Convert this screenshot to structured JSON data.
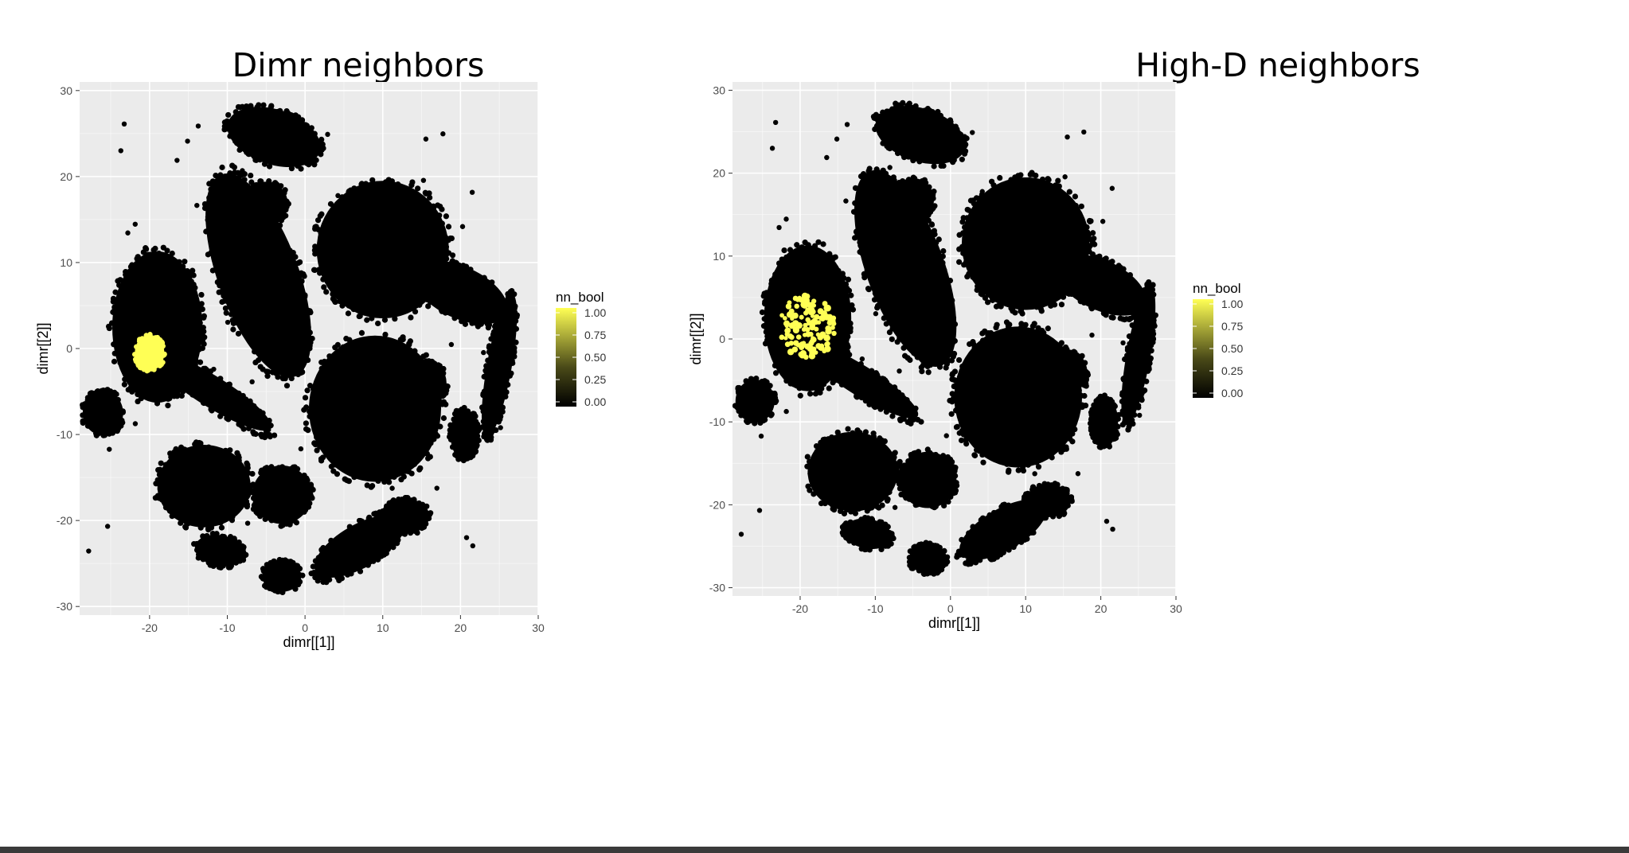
{
  "chart_data": [
    {
      "type": "scatter",
      "title": "Dimr neighbors",
      "xlabel": "dimr[[1]]",
      "ylabel": "dimr[[2]]",
      "xlim": [
        -29,
        30
      ],
      "ylim": [
        -31,
        31
      ],
      "xticks": [
        -20,
        -10,
        0,
        10,
        20,
        30
      ],
      "yticks": [
        -30,
        -20,
        -10,
        0,
        10,
        20,
        30
      ],
      "grid": true,
      "legend": {
        "title": "nn_bool",
        "placement": "right",
        "ticks": [
          "1.00",
          "0.75",
          "0.50",
          "0.25",
          "0.00"
        ],
        "color_low": "#000000",
        "color_high": "#ffff55"
      },
      "highlight": {
        "mode": "compact",
        "center": [
          -20,
          -0.5
        ],
        "radius": 1.9,
        "value": 1.0
      },
      "background_value": 0.0
    },
    {
      "type": "scatter",
      "title": "High-D neighbors",
      "xlabel": "dimr[[1]]",
      "ylabel": "dimr[[2]]",
      "xlim": [
        -29,
        30
      ],
      "ylim": [
        -31,
        31
      ],
      "xticks": [
        -20,
        -10,
        0,
        10,
        20,
        30
      ],
      "yticks": [
        -30,
        -20,
        -10,
        0,
        10,
        20,
        30
      ],
      "grid": true,
      "legend": {
        "title": "nn_bool",
        "placement": "right",
        "ticks": [
          "1.00",
          "0.75",
          "0.50",
          "0.25",
          "0.00"
        ],
        "color_low": "#000000",
        "color_high": "#ffff55"
      },
      "highlight": {
        "mode": "scattered",
        "center": [
          -19,
          1.5
        ],
        "spread": [
          3.6,
          3.8
        ],
        "value": 1.0
      },
      "background_value": 0.0
    }
  ],
  "colors": {
    "panel_bg": "#ebebeb",
    "grid": "#ffffff",
    "points": "#000000",
    "highlight": "#ffff55",
    "axis_text": "#4d4d4d"
  }
}
